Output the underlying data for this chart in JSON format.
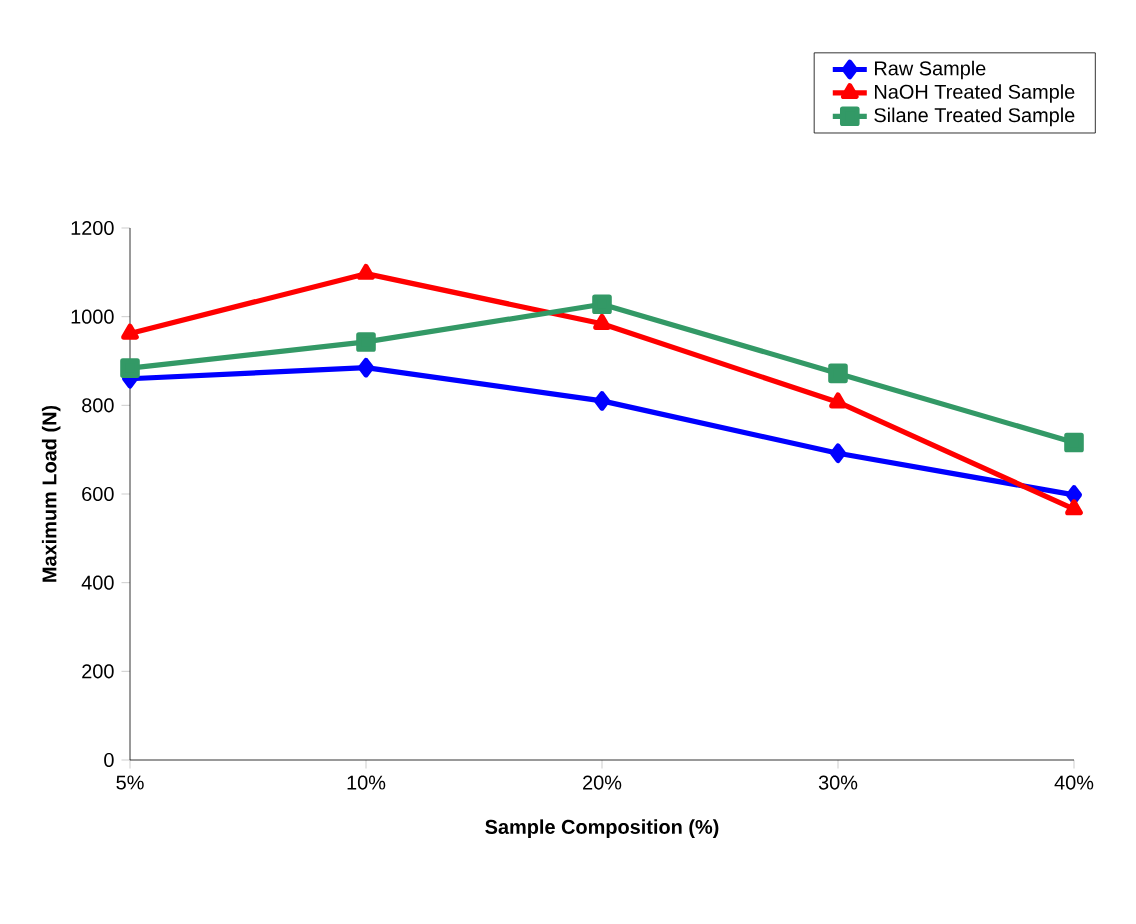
{
  "chart_data": {
    "type": "line",
    "xlabel": "Sample Composition (%)",
    "ylabel": "Maximum Load (N)",
    "categories": [
      "5%",
      "10%",
      "20%",
      "30%",
      "40%"
    ],
    "ylim": [
      0,
      1200
    ],
    "yticks": [
      0,
      200,
      400,
      600,
      800,
      1000,
      1200
    ],
    "grid": false,
    "legend": "top right",
    "series": [
      {
        "name": "Raw Sample",
        "color": "#0000ff",
        "marker": "diamond",
        "values": [
          860,
          885,
          810,
          692,
          598
        ]
      },
      {
        "name": "NaOH Treated  Sample",
        "color": "#ff0000",
        "marker": "triangle",
        "values": [
          962,
          1097,
          984,
          807,
          566
        ]
      },
      {
        "name": "Silane Treated  Sample",
        "color": "#339966",
        "marker": "square",
        "values": [
          884,
          943,
          1028,
          872,
          716
        ]
      }
    ]
  }
}
